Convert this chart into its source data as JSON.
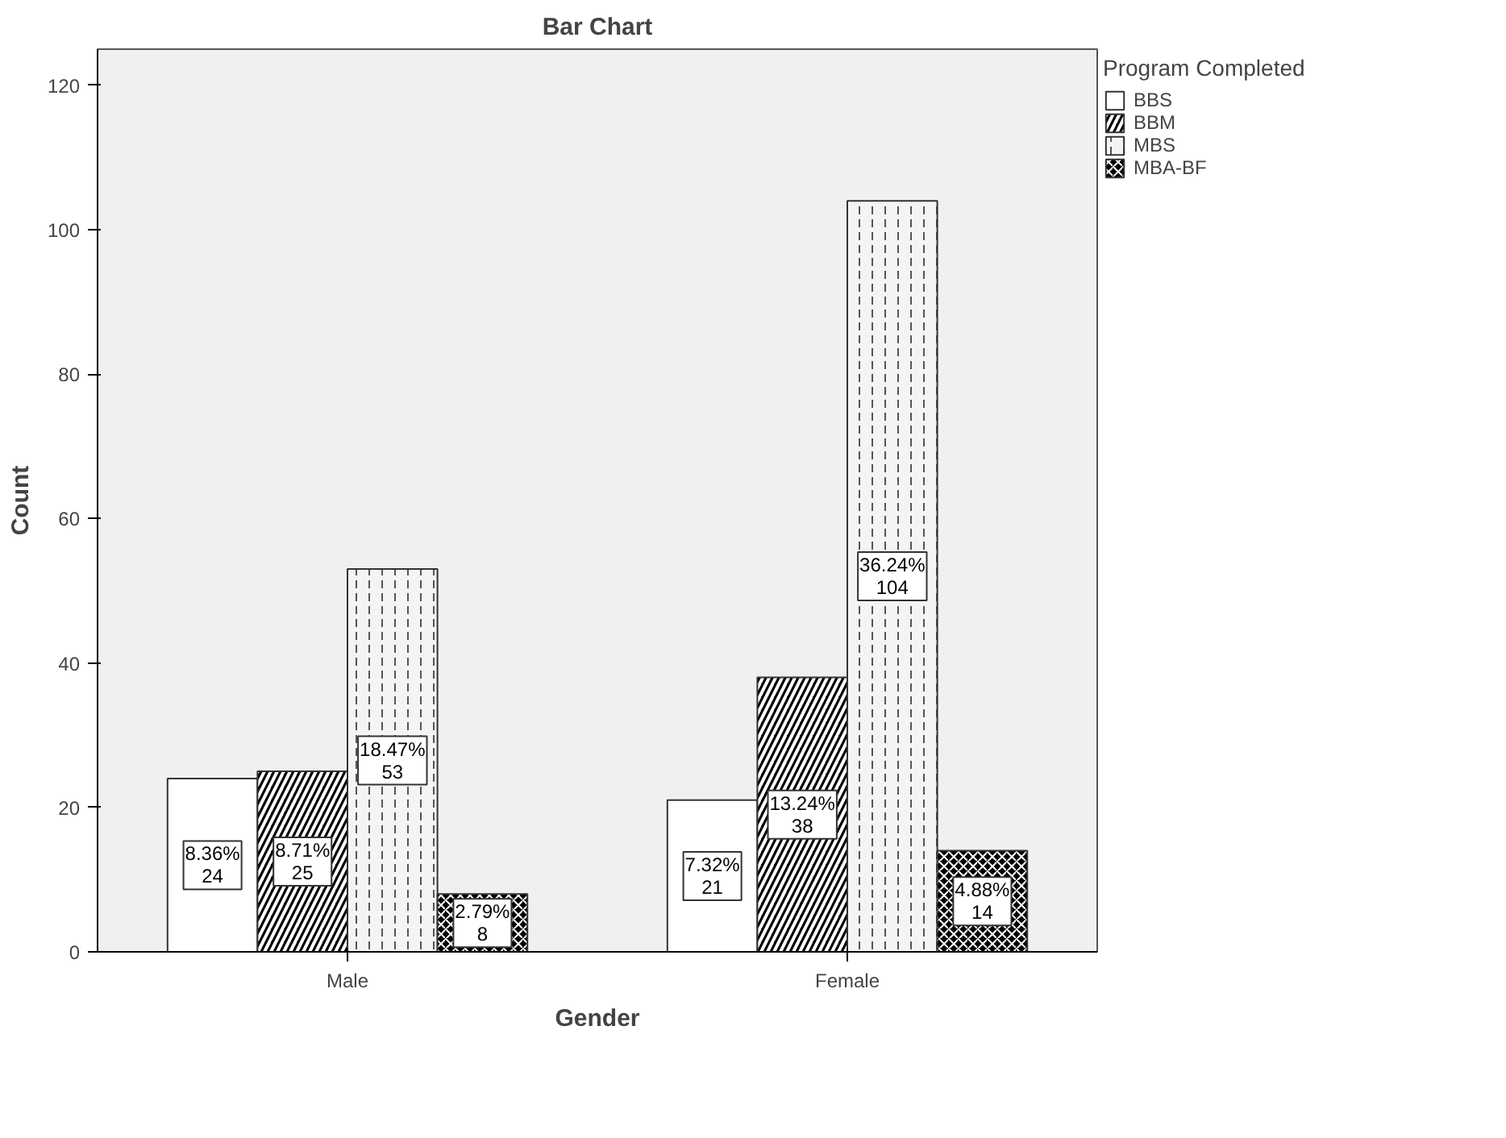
{
  "chart_data": {
    "type": "bar",
    "title": "Bar Chart",
    "xlabel": "Gender",
    "ylabel": "Count",
    "legend_title": "Program Completed",
    "categories": [
      "Male",
      "Female"
    ],
    "series": [
      {
        "name": "BBS",
        "color": "#ffffff",
        "values": [
          24,
          21
        ],
        "value_labels": [
          "8.36%\n24",
          "7.32%\n21"
        ]
      },
      {
        "name": "BBM",
        "color": "#000000",
        "values": [
          25,
          38
        ],
        "value_labels": [
          "8.71%\n25",
          "13.24%\n38"
        ]
      },
      {
        "name": "MBS",
        "color": "#f4f4f4",
        "values": [
          53,
          104
        ],
        "value_labels": [
          "18.47%\n53",
          "36.24%\n104"
        ]
      },
      {
        "name": "MBA-BF",
        "color": "#000000",
        "values": [
          8,
          14
        ],
        "value_labels": [
          "2.79%\n8",
          "4.88%\n14"
        ]
      }
    ],
    "ylim": [
      0,
      125
    ],
    "yticks": [
      0,
      20,
      40,
      60,
      80,
      100,
      120
    ],
    "grid": false,
    "legend": "right"
  }
}
